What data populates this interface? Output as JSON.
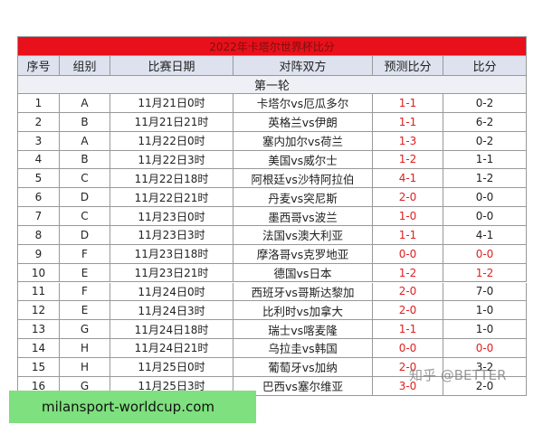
{
  "table": {
    "title": "2022年卡塔尔世界杯比分",
    "header": [
      "序号",
      "组别",
      "比赛日期",
      "对阵双方",
      "预测比分",
      "比分"
    ],
    "round": "第一轮",
    "rows": [
      [
        "1",
        "A",
        "11月21日0时",
        "卡塔尔vs厄瓜多尔",
        "1-1",
        "0-2"
      ],
      [
        "2",
        "B",
        "11月21日21时",
        "英格兰vs伊朗",
        "1-1",
        "6-2"
      ],
      [
        "3",
        "A",
        "11月22日0时",
        "塞内加尔vs荷兰",
        "1-3",
        "0-2"
      ],
      [
        "4",
        "B",
        "11月22日3时",
        "美国vs威尔士",
        "1-2",
        "1-1"
      ],
      [
        "5",
        "C",
        "11月22日18时",
        "阿根廷vs沙特阿拉伯",
        "4-1",
        "1-2"
      ],
      [
        "6",
        "D",
        "11月22日21时",
        "丹麦vs突尼斯",
        "2-0",
        "0-0"
      ],
      [
        "7",
        "C",
        "11月23日0时",
        "墨西哥vs波兰",
        "1-0",
        "0-0"
      ],
      [
        "8",
        "D",
        "11月23日3时",
        "法国vs澳大利亚",
        "1-1",
        "4-1"
      ],
      [
        "9",
        "F",
        "11月23日18时",
        "摩洛哥vs克罗地亚",
        "0-0",
        "0-0"
      ],
      [
        "10",
        "E",
        "11月23日21时",
        "德国vs日本",
        "1-2",
        "1-2"
      ],
      [
        "11",
        "F",
        "11月24日0时",
        "西班牙vs哥斯达黎加",
        "2-0",
        "7-0"
      ],
      [
        "12",
        "E",
        "11月24日3时",
        "比利时vs加拿大",
        "2-0",
        "1-0"
      ],
      [
        "13",
        "G",
        "11月24日18时",
        "瑞士vs喀麦隆",
        "1-1",
        "1-0"
      ],
      [
        "14",
        "H",
        "11月24日21时",
        "乌拉圭vs韩国",
        "0-0",
        "0-0"
      ],
      [
        "15",
        "H",
        "11月25日0时",
        "葡萄牙vs加纳",
        "2-0",
        "3-2"
      ],
      [
        "16",
        "G",
        "11月25日3时",
        "巴西vs塞尔维亚",
        "3-0",
        "2-0"
      ]
    ]
  },
  "watermark": "知乎 @BETTER",
  "banner": "milansport-worldcup.com"
}
